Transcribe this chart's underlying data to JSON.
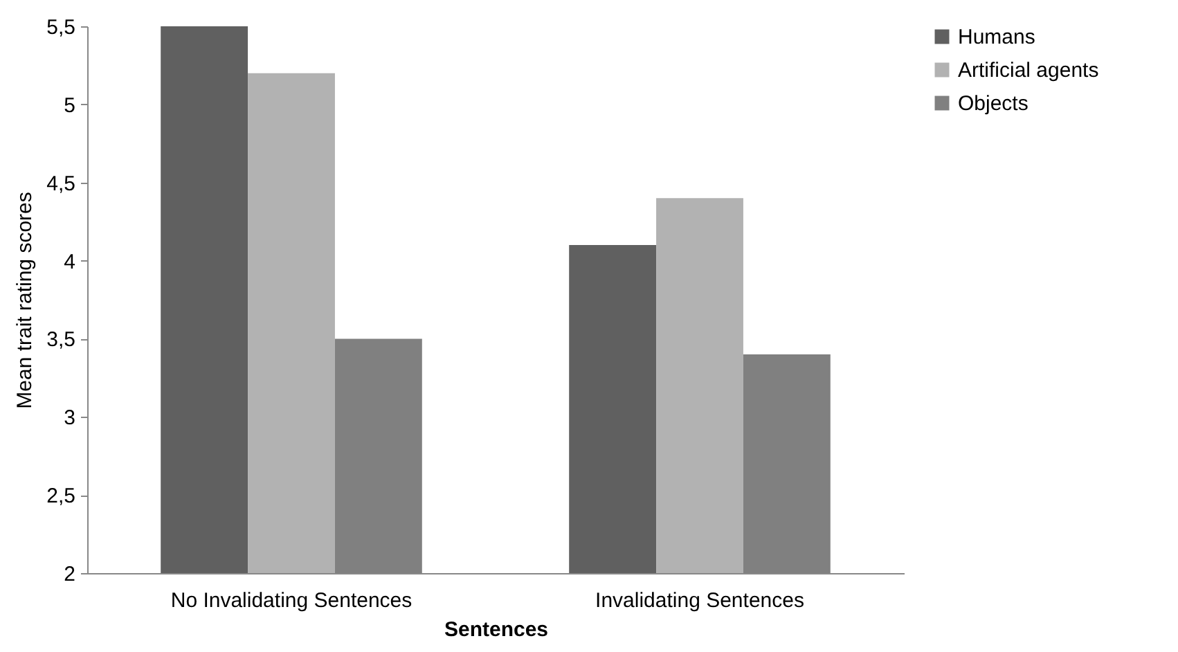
{
  "chart_data": {
    "type": "bar",
    "xlabel": "Sentences",
    "ylabel": "Mean trait rating scores",
    "categories": [
      "No Invalidating Sentences",
      "Invalidating Sentences"
    ],
    "series": [
      {
        "name": "Humans",
        "color": "#606060",
        "values": [
          5.5,
          4.1
        ]
      },
      {
        "name": "Artificial agents",
        "color": "#b2b2b2",
        "values": [
          5.2,
          4.4
        ]
      },
      {
        "name": "Objects",
        "color": "#808080",
        "values": [
          3.5,
          3.4
        ]
      }
    ],
    "ylim": [
      2,
      5.5
    ],
    "yticks": [
      2,
      {
        "value": 2.5,
        "label": "2,5"
      },
      3,
      {
        "value": 3.5,
        "label": "3,5"
      },
      4,
      {
        "value": 4.5,
        "label": "4,5"
      },
      5,
      {
        "value": 5.5,
        "label": "5,5"
      }
    ],
    "grid": false,
    "legend": "right"
  }
}
